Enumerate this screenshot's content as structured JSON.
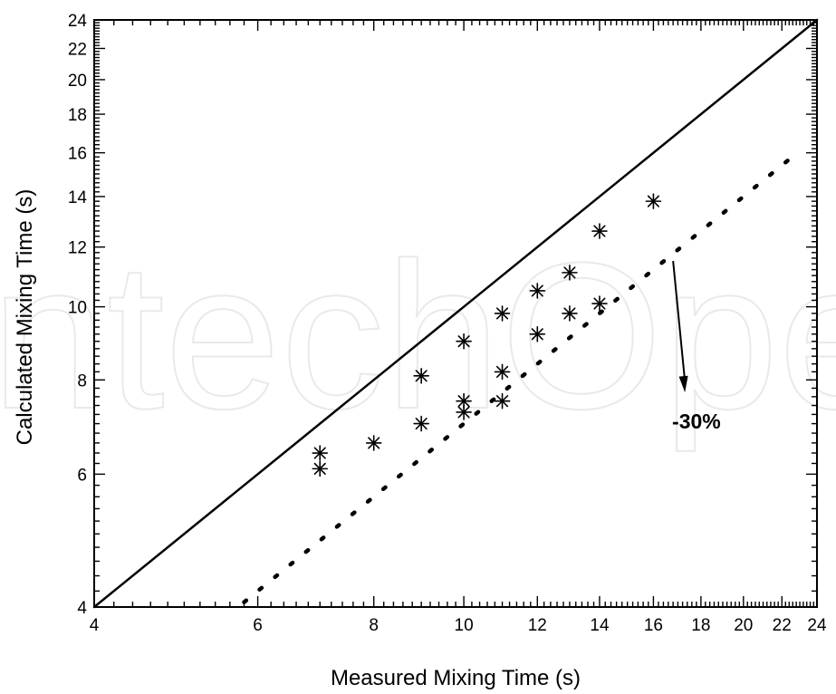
{
  "chart_data": {
    "type": "scatter",
    "xlabel": "Measured Mixing Time (s)",
    "ylabel": "Calculated Mixing Time (s)",
    "x_scale": "log",
    "y_scale": "log",
    "xlim": [
      4,
      24
    ],
    "ylim": [
      4,
      24
    ],
    "x_ticks": [
      4,
      6,
      8,
      10,
      12,
      14,
      16,
      18,
      20,
      22,
      24
    ],
    "y_ticks": [
      4,
      6,
      8,
      10,
      12,
      14,
      16,
      18,
      20,
      22,
      24
    ],
    "marker": "asterisk",
    "points": [
      {
        "x": 7,
        "y": 6.4
      },
      {
        "x": 7,
        "y": 6.1
      },
      {
        "x": 8,
        "y": 6.6
      },
      {
        "x": 9,
        "y": 8.1
      },
      {
        "x": 9,
        "y": 7.0
      },
      {
        "x": 10,
        "y": 9.0
      },
      {
        "x": 10,
        "y": 7.5
      },
      {
        "x": 10,
        "y": 7.25
      },
      {
        "x": 11,
        "y": 9.8
      },
      {
        "x": 11,
        "y": 8.2
      },
      {
        "x": 11,
        "y": 7.5
      },
      {
        "x": 12,
        "y": 10.5
      },
      {
        "x": 12,
        "y": 9.2
      },
      {
        "x": 13,
        "y": 11.1
      },
      {
        "x": 13,
        "y": 9.8
      },
      {
        "x": 14,
        "y": 12.6
      },
      {
        "x": 14,
        "y": 10.1
      },
      {
        "x": 16,
        "y": 13.8
      }
    ],
    "lines": [
      {
        "style": "solid",
        "x": [
          4,
          24
        ],
        "y": [
          4,
          24
        ]
      },
      {
        "style": "dotted",
        "x": [
          5.8,
          22.9
        ],
        "y": [
          4.06,
          16.03
        ]
      }
    ],
    "annotation": {
      "text": "-30%",
      "arrow_from": [
        16.8,
        11.5
      ],
      "arrow_to": [
        17.3,
        7.7
      ],
      "text_at": [
        17.8,
        6.9
      ]
    },
    "watermark": "ntechOpe",
    "grid": false
  }
}
